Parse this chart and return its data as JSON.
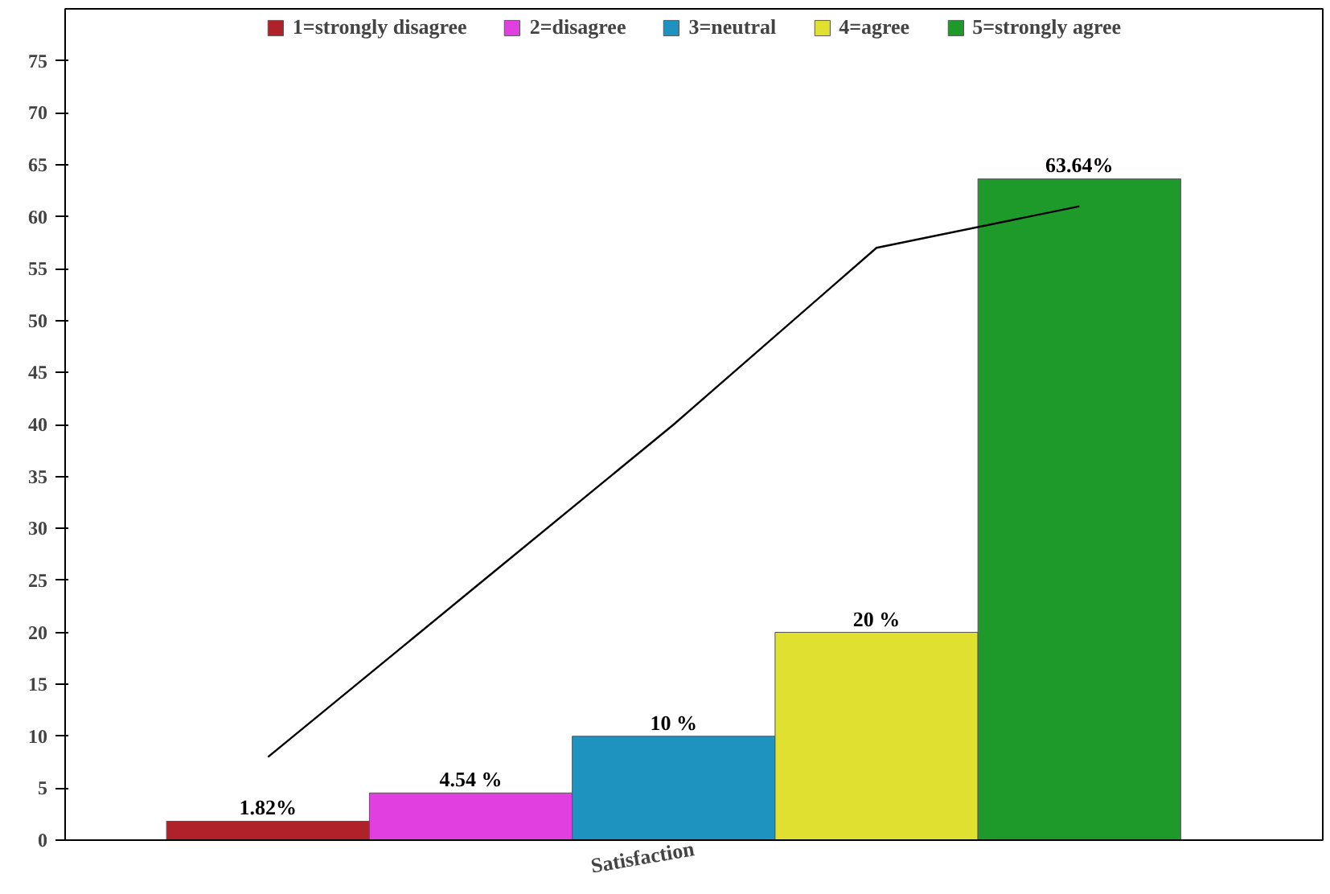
{
  "chart_data": {
    "type": "bar",
    "xlabel": "Satisfaction",
    "categories": [
      null,
      null,
      null,
      null,
      null
    ],
    "ylim": [
      0,
      80
    ],
    "yticks": [
      0,
      5,
      10,
      15,
      20,
      25,
      30,
      35,
      40,
      45,
      50,
      55,
      60,
      65,
      70,
      75
    ],
    "grid": false,
    "legend": "top",
    "series": [
      {
        "name": "1=strongly disagree",
        "color": "#b0222a",
        "values": [
          1.82,
          null,
          null,
          null,
          null
        ],
        "value_labels": [
          "1.82%",
          null,
          null,
          null,
          null
        ]
      },
      {
        "name": "2=disagree",
        "color": "#e040e0",
        "values": [
          null,
          4.54,
          null,
          null,
          null
        ],
        "value_labels": [
          null,
          "4.54 %",
          null,
          null,
          null
        ]
      },
      {
        "name": "3=neutral",
        "color": "#1f93c0",
        "values": [
          null,
          null,
          10,
          null,
          null
        ],
        "value_labels": [
          null,
          null,
          "10 %",
          null,
          null
        ]
      },
      {
        "name": "4=agree",
        "color": "#e0e030",
        "values": [
          null,
          null,
          null,
          20,
          null
        ],
        "value_labels": [
          null,
          null,
          null,
          "20 %",
          null
        ]
      },
      {
        "name": "5=strongly agree",
        "color": "#1e9a2a",
        "values": [
          null,
          null,
          null,
          null,
          63.64
        ],
        "value_labels": [
          null,
          null,
          null,
          null,
          "63.64%"
        ]
      },
      {
        "type": "line",
        "color": "#000000",
        "values": [
          8,
          24,
          40,
          57,
          61
        ]
      }
    ]
  }
}
